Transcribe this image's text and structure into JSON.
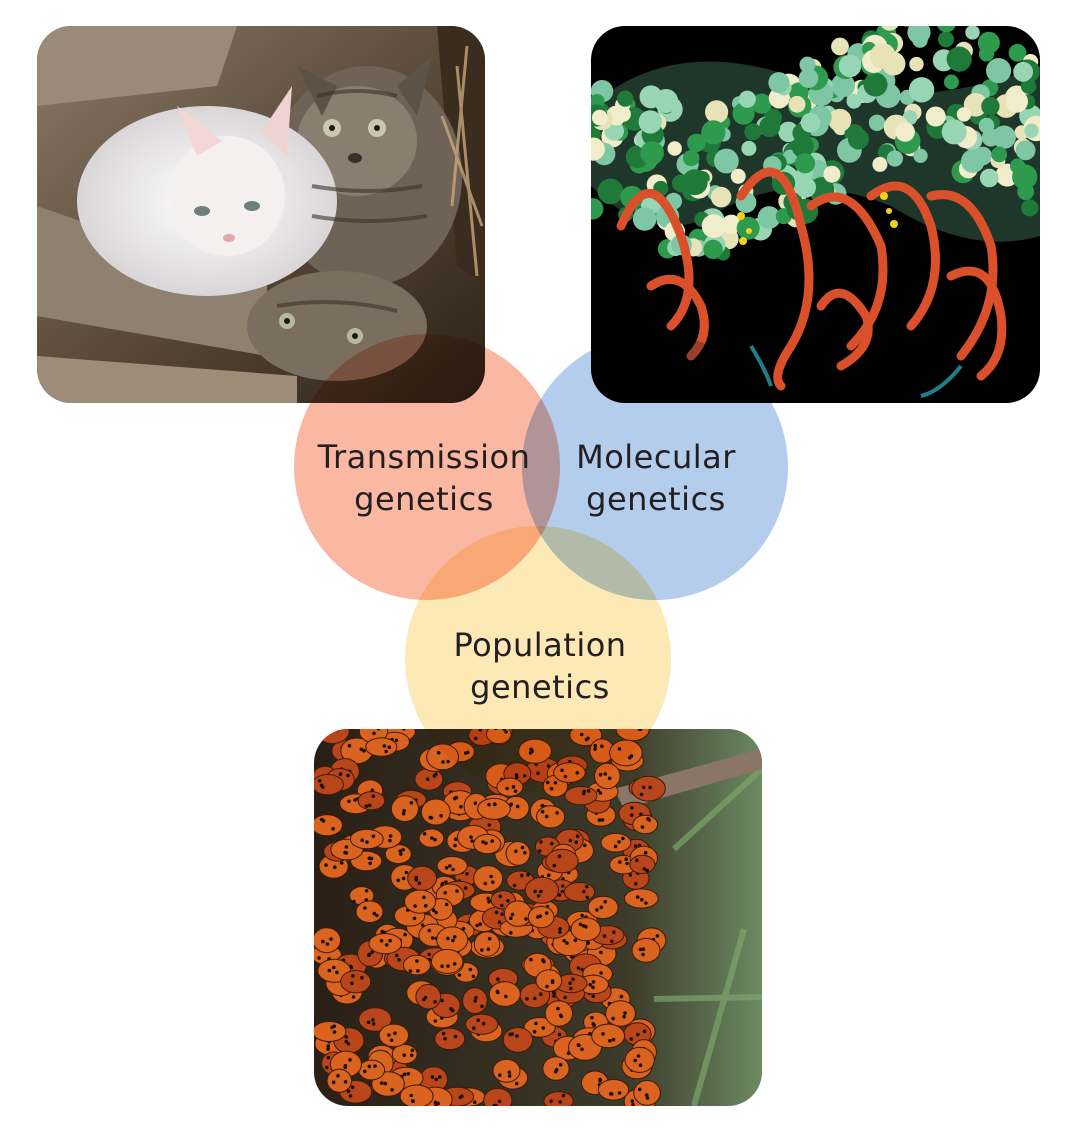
{
  "diagram": {
    "circles": [
      {
        "line1": "Transmission",
        "line2": "genetics",
        "color": "#f9a88f"
      },
      {
        "line1": "Molecular",
        "line2": "genetics",
        "color": "#a3c2e8"
      },
      {
        "line1": "Population",
        "line2": "genetics",
        "color": "#fde5a6"
      }
    ],
    "photos": [
      {
        "subject": "kittens"
      },
      {
        "subject": "protein-dna-model"
      },
      {
        "subject": "ladybugs"
      }
    ]
  }
}
